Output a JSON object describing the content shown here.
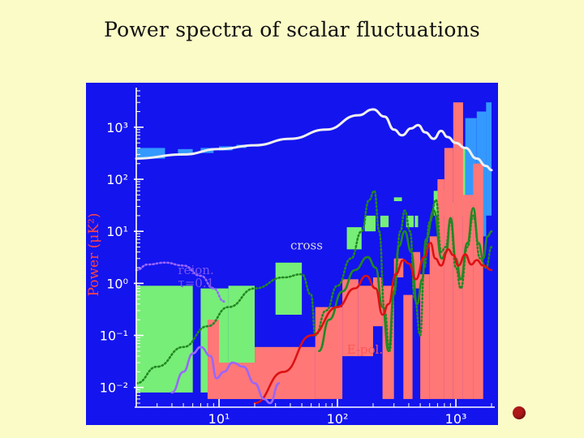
{
  "slide": {
    "title": "Power spectra of scalar fluctuations"
  },
  "chart_data": {
    "type": "line",
    "title": "",
    "xlabel": "",
    "ylabel": "Power (μK²)",
    "x_scale": "log",
    "y_scale": "log",
    "xlim": [
      2,
      2000
    ],
    "ylim": [
      0.005,
      5000
    ],
    "x_ticks": [
      {
        "value": 10,
        "label": "10¹"
      },
      {
        "value": 100,
        "label": "10²"
      },
      {
        "value": 1000,
        "label": "10³"
      }
    ],
    "y_ticks": [
      {
        "value": 1000,
        "label": "10³"
      },
      {
        "value": 100,
        "label": "10²"
      },
      {
        "value": 10,
        "label": "10¹"
      },
      {
        "value": 1,
        "label": "10⁰"
      },
      {
        "value": 0.1,
        "label": "10⁻¹"
      },
      {
        "value": 0.01,
        "label": "10⁻²"
      }
    ],
    "colors": {
      "background": "#1414ee",
      "temperature": "#f0f0f0",
      "cross": "#228822",
      "epol": "#dd1111",
      "reion": "#9966ff",
      "box_t": "#3399ff",
      "box_c": "#77ee77",
      "box_e": "#ff7777"
    },
    "annotations": [
      {
        "text": "cross",
        "x": 40,
        "y": 4.5,
        "color": "#dddddd"
      },
      {
        "text": "E-pol.",
        "x": 120,
        "y": 0.045,
        "color": "#ff5555"
      },
      {
        "text": "reion.",
        "x": 4.5,
        "y": 1.5,
        "color": "#7a55ee"
      },
      {
        "text": "τ=0.1",
        "x": 4.5,
        "y": 0.85,
        "color": "#7a55ee"
      }
    ],
    "series": [
      {
        "name": "temperature",
        "style": "solid",
        "points": [
          [
            2,
            250
          ],
          [
            5,
            300
          ],
          [
            10,
            380
          ],
          [
            20,
            450
          ],
          [
            40,
            600
          ],
          [
            80,
            900
          ],
          [
            150,
            1700
          ],
          [
            200,
            2200
          ],
          [
            250,
            1600
          ],
          [
            300,
            900
          ],
          [
            350,
            700
          ],
          [
            420,
            950
          ],
          [
            480,
            1100
          ],
          [
            550,
            800
          ],
          [
            650,
            600
          ],
          [
            750,
            850
          ],
          [
            850,
            650
          ],
          [
            1000,
            500
          ],
          [
            1200,
            400
          ],
          [
            1500,
            250
          ],
          [
            1800,
            180
          ],
          [
            2000,
            150
          ]
        ]
      },
      {
        "name": "cross",
        "style": "solid",
        "points": [
          [
            70,
            0.05
          ],
          [
            85,
            0.2
          ],
          [
            110,
            0.7
          ],
          [
            140,
            1.8
          ],
          [
            180,
            3.2
          ],
          [
            210,
            2.0
          ],
          [
            240,
            0.35
          ],
          [
            270,
            0.05
          ],
          [
            300,
            0.7
          ],
          [
            330,
            5.2
          ],
          [
            370,
            10
          ],
          [
            420,
            4.0
          ],
          [
            470,
            0.4
          ],
          [
            520,
            1.2
          ],
          [
            560,
            7
          ],
          [
            650,
            25
          ],
          [
            760,
            3
          ],
          [
            830,
            4
          ],
          [
            900,
            18
          ],
          [
            1000,
            3
          ],
          [
            1100,
            1.2
          ],
          [
            1250,
            6
          ],
          [
            1400,
            28
          ],
          [
            1550,
            6
          ],
          [
            1700,
            3
          ],
          [
            1850,
            8
          ],
          [
            2000,
            10
          ]
        ]
      },
      {
        "name": "cross_reion",
        "style": "dotted",
        "points": [
          [
            2,
            0.012
          ],
          [
            3,
            0.025
          ],
          [
            5,
            0.06
          ],
          [
            8,
            0.15
          ],
          [
            12,
            0.35
          ],
          [
            20,
            0.8
          ],
          [
            35,
            1.3
          ],
          [
            50,
            1.5
          ],
          [
            60,
            0.6
          ],
          [
            65,
            0.1
          ],
          [
            80,
            0.3
          ],
          [
            100,
            0.9
          ],
          [
            130,
            3
          ],
          [
            160,
            10
          ],
          [
            185,
            40
          ],
          [
            205,
            60
          ],
          [
            225,
            10
          ],
          [
            250,
            0.3
          ],
          [
            275,
            0.05
          ],
          [
            300,
            0.6
          ],
          [
            340,
            10
          ],
          [
            370,
            25
          ],
          [
            410,
            10
          ],
          [
            450,
            0.5
          ],
          [
            500,
            0.1
          ],
          [
            540,
            2
          ],
          [
            600,
            15
          ],
          [
            680,
            40
          ],
          [
            750,
            4
          ],
          [
            820,
            5
          ],
          [
            900,
            16
          ],
          [
            1000,
            2
          ],
          [
            1100,
            0.8
          ],
          [
            1250,
            5
          ],
          [
            1400,
            20
          ],
          [
            1600,
            3
          ],
          [
            1800,
            2
          ],
          [
            2000,
            5
          ]
        ]
      },
      {
        "name": "epol",
        "style": "solid",
        "points": [
          [
            20,
            0.005
          ],
          [
            35,
            0.02
          ],
          [
            60,
            0.1
          ],
          [
            100,
            0.35
          ],
          [
            140,
            0.8
          ],
          [
            175,
            1.4
          ],
          [
            210,
            0.8
          ],
          [
            240,
            0.25
          ],
          [
            270,
            0.4
          ],
          [
            310,
            1.5
          ],
          [
            360,
            2.8
          ],
          [
            400,
            2.4
          ],
          [
            460,
            1.2
          ],
          [
            540,
            3.2
          ],
          [
            610,
            6
          ],
          [
            670,
            3
          ],
          [
            750,
            2.2
          ],
          [
            860,
            4.5
          ],
          [
            950,
            3.5
          ],
          [
            1050,
            2.2
          ],
          [
            1200,
            3.6
          ],
          [
            1350,
            2.3
          ],
          [
            1500,
            2.8
          ],
          [
            1700,
            2.2
          ],
          [
            2000,
            1.8
          ]
        ]
      },
      {
        "name": "reion",
        "style": "dotted",
        "points": [
          [
            2,
            1.8
          ],
          [
            2.5,
            2.3
          ],
          [
            3.5,
            2.5
          ],
          [
            5,
            2.2
          ],
          [
            7,
            1.4
          ],
          [
            9,
            0.8
          ],
          [
            11,
            0.45
          ]
        ]
      },
      {
        "name": "reion_low",
        "style": "solid",
        "points": [
          [
            4,
            0.008
          ],
          [
            5,
            0.02
          ],
          [
            6,
            0.045
          ],
          [
            7,
            0.06
          ],
          [
            8.5,
            0.04
          ],
          [
            9.5,
            0.015
          ],
          [
            11,
            0.02
          ],
          [
            13,
            0.03
          ],
          [
            16,
            0.025
          ],
          [
            20,
            0.012
          ],
          [
            24,
            0.006
          ],
          [
            27,
            0.005
          ],
          [
            32,
            0.012
          ]
        ]
      }
    ],
    "boxes": [
      {
        "group": "T",
        "x": [
          2,
          3.5
        ],
        "y": [
          250,
          400
        ]
      },
      {
        "group": "T",
        "x": [
          4.5,
          6
        ],
        "y": [
          300,
          380
        ]
      },
      {
        "group": "T",
        "x": [
          7,
          9
        ],
        "y": [
          320,
          400
        ]
      },
      {
        "group": "T",
        "x": [
          10,
          13
        ],
        "y": [
          360,
          430
        ]
      },
      {
        "group": "T",
        "x": [
          14,
          17
        ],
        "y": [
          400,
          460
        ]
      },
      {
        "group": "T",
        "x": [
          1200,
          1500
        ],
        "y": [
          12,
          1500
        ]
      },
      {
        "group": "T",
        "x": [
          1500,
          1800
        ],
        "y": [
          8,
          2000
        ]
      },
      {
        "group": "T",
        "x": [
          1800,
          2000
        ],
        "y": [
          20,
          3000
        ]
      },
      {
        "group": "C",
        "x": [
          2,
          6
        ],
        "y": [
          0.008,
          0.9
        ]
      },
      {
        "group": "C",
        "x": [
          7,
          12
        ],
        "y": [
          0.008,
          0.8
        ]
      },
      {
        "group": "C",
        "x": [
          12,
          20
        ],
        "y": [
          0.015,
          0.9
        ]
      },
      {
        "group": "C",
        "x": [
          30,
          50
        ],
        "y": [
          0.25,
          2.5
        ]
      },
      {
        "group": "C",
        "x": [
          120,
          160
        ],
        "y": [
          4.5,
          12
        ]
      },
      {
        "group": "C",
        "x": [
          170,
          210
        ],
        "y": [
          10,
          20
        ]
      },
      {
        "group": "C",
        "x": [
          230,
          270
        ],
        "y": [
          12,
          20
        ]
      },
      {
        "group": "C",
        "x": [
          300,
          350
        ],
        "y": [
          38,
          45
        ]
      },
      {
        "group": "C",
        "x": [
          380,
          440
        ],
        "y": [
          12,
          20
        ]
      },
      {
        "group": "C",
        "x": [
          450,
          480
        ],
        "y": [
          12,
          20
        ]
      },
      {
        "group": "C",
        "x": [
          650,
          800
        ],
        "y": [
          20,
          60
        ]
      },
      {
        "group": "C",
        "x": [
          920,
          1200
        ],
        "y": [
          20,
          35
        ]
      },
      {
        "group": "C",
        "x": [
          1100,
          1200
        ],
        "y": [
          20,
          400
        ]
      },
      {
        "group": "E",
        "x": [
          8,
          10
        ],
        "y": [
          0.006,
          0.2
        ]
      },
      {
        "group": "E",
        "x": [
          10,
          20
        ],
        "y": [
          0.006,
          0.03
        ]
      },
      {
        "group": "E",
        "x": [
          20,
          40
        ],
        "y": [
          0.006,
          0.06
        ]
      },
      {
        "group": "E",
        "x": [
          40,
          65
        ],
        "y": [
          0.006,
          0.06
        ]
      },
      {
        "group": "E",
        "x": [
          65,
          110
        ],
        "y": [
          0.006,
          0.35
        ]
      },
      {
        "group": "E",
        "x": [
          110,
          150
        ],
        "y": [
          0.04,
          1.2
        ]
      },
      {
        "group": "E",
        "x": [
          150,
          200
        ],
        "y": [
          0.04,
          0.9
        ]
      },
      {
        "group": "E",
        "x": [
          200,
          240
        ],
        "y": [
          0.15,
          1.3
        ]
      },
      {
        "group": "E",
        "x": [
          240,
          300
        ],
        "y": [
          0.006,
          0.9
        ]
      },
      {
        "group": "E",
        "x": [
          300,
          360
        ],
        "y": [
          1.3,
          3
        ]
      },
      {
        "group": "E",
        "x": [
          360,
          430
        ],
        "y": [
          0.006,
          0.6
        ]
      },
      {
        "group": "E",
        "x": [
          430,
          500
        ],
        "y": [
          0.8,
          4
        ]
      },
      {
        "group": "E",
        "x": [
          500,
          600
        ],
        "y": [
          0.006,
          1.5
        ]
      },
      {
        "group": "E",
        "x": [
          600,
          700
        ],
        "y": [
          0.006,
          8
        ]
      },
      {
        "group": "E",
        "x": [
          700,
          800
        ],
        "y": [
          0.006,
          100
        ]
      },
      {
        "group": "E",
        "x": [
          800,
          950
        ],
        "y": [
          0.006,
          400
        ]
      },
      {
        "group": "E",
        "x": [
          950,
          1150
        ],
        "y": [
          0.006,
          3000
        ]
      },
      {
        "group": "E",
        "x": [
          1150,
          1400
        ],
        "y": [
          0.006,
          50
        ]
      },
      {
        "group": "E",
        "x": [
          1400,
          1700
        ],
        "y": [
          0.006,
          200
        ]
      }
    ]
  }
}
